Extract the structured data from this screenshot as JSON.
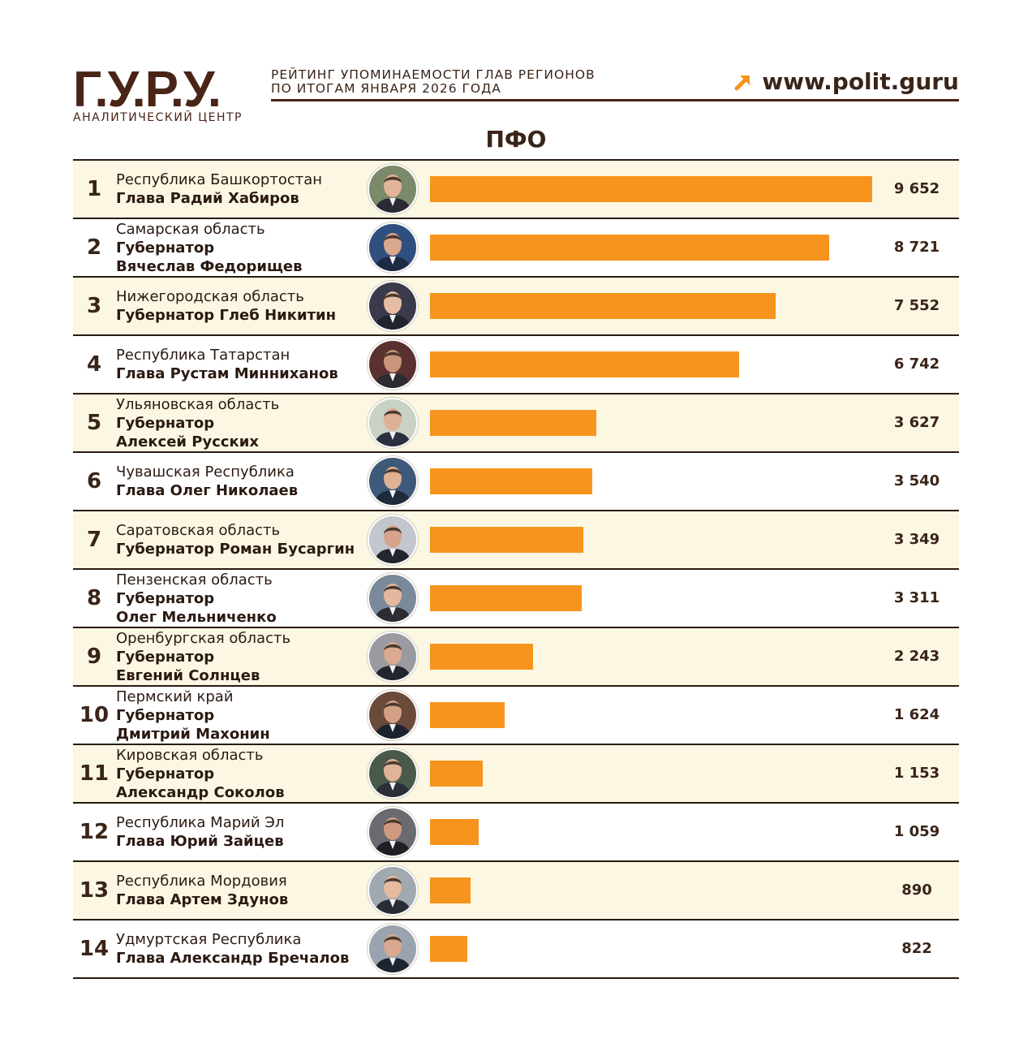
{
  "header": {
    "logo": "Г.У.Р.У.",
    "logo_subtitle": "АНАЛИТИЧЕСКИЙ ЦЕНТР",
    "subtitle_line1": "РЕЙТИНГ УПОМИНАЕМОСТИ ГЛАВ РЕГИОНОВ",
    "subtitle_line2": "ПО ИТОГАМ ЯНВАРЯ 2026 ГОДА",
    "website": "www.polit.guru",
    "accent_color": "#f7941d",
    "brand_color": "#4a2416"
  },
  "region_title": "ПФО",
  "chart_data": {
    "type": "bar",
    "title": "ПФО",
    "max_value": 9652,
    "rows": [
      {
        "rank": "1",
        "region": "Республика Башкортостан",
        "person_lines": [
          "Глава Радий Хабиров"
        ],
        "value": 9652,
        "value_label": "9 652",
        "photo": "portrait-icon"
      },
      {
        "rank": "2",
        "region": "Самарская область",
        "person_lines": [
          "Губернатор",
          "Вячеслав Федорищев"
        ],
        "value": 8721,
        "value_label": "8 721",
        "photo": "portrait-icon"
      },
      {
        "rank": "3",
        "region": "Нижегородская область",
        "person_lines": [
          "Губернатор Глеб Никитин"
        ],
        "value": 7552,
        "value_label": "7 552",
        "photo": "portrait-icon"
      },
      {
        "rank": "4",
        "region": "Республика Татарстан",
        "person_lines": [
          "Глава Рустам Минниханов"
        ],
        "value": 6742,
        "value_label": "6 742",
        "photo": "portrait-icon"
      },
      {
        "rank": "5",
        "region": "Ульяновская область",
        "person_lines": [
          "Губернатор",
          "Алексей Русских"
        ],
        "value": 3627,
        "value_label": "3 627",
        "photo": "portrait-icon"
      },
      {
        "rank": "6",
        "region": "Чувашская Республика",
        "person_lines": [
          "Глава Олег Николаев"
        ],
        "value": 3540,
        "value_label": "3 540",
        "photo": "portrait-icon"
      },
      {
        "rank": "7",
        "region": "Саратовская область",
        "person_lines": [
          "Губернатор Роман Бусаргин"
        ],
        "value": 3349,
        "value_label": "3 349",
        "photo": "portrait-icon"
      },
      {
        "rank": "8",
        "region": "Пензенская область",
        "person_lines": [
          "Губернатор",
          "Олег Мельниченко"
        ],
        "value": 3311,
        "value_label": "3 311",
        "photo": "portrait-icon"
      },
      {
        "rank": "9",
        "region": "Оренбургская область",
        "person_lines": [
          "Губернатор",
          "Евгений Солнцев"
        ],
        "value": 2243,
        "value_label": "2 243",
        "photo": "portrait-icon"
      },
      {
        "rank": "10",
        "region": "Пермский край",
        "person_lines": [
          "Губернатор",
          "Дмитрий Махонин"
        ],
        "value": 1624,
        "value_label": "1 624",
        "photo": "portrait-icon"
      },
      {
        "rank": "11",
        "region": "Кировская область",
        "person_lines": [
          "Губернатор",
          "Александр Соколов"
        ],
        "value": 1153,
        "value_label": "1 153",
        "photo": "portrait-icon"
      },
      {
        "rank": "12",
        "region": "Республика Марий Эл",
        "person_lines": [
          "Глава Юрий Зайцев"
        ],
        "value": 1059,
        "value_label": "1 059",
        "photo": "portrait-icon"
      },
      {
        "rank": "13",
        "region": "Республика Мордовия",
        "person_lines": [
          "Глава Артем Здунов"
        ],
        "value": 890,
        "value_label": "890",
        "photo": "portrait-icon"
      },
      {
        "rank": "14",
        "region": "Удмуртская Республика",
        "person_lines": [
          "Глава Александр Бречалов"
        ],
        "value": 822,
        "value_label": "822",
        "photo": "portrait-icon"
      }
    ]
  }
}
